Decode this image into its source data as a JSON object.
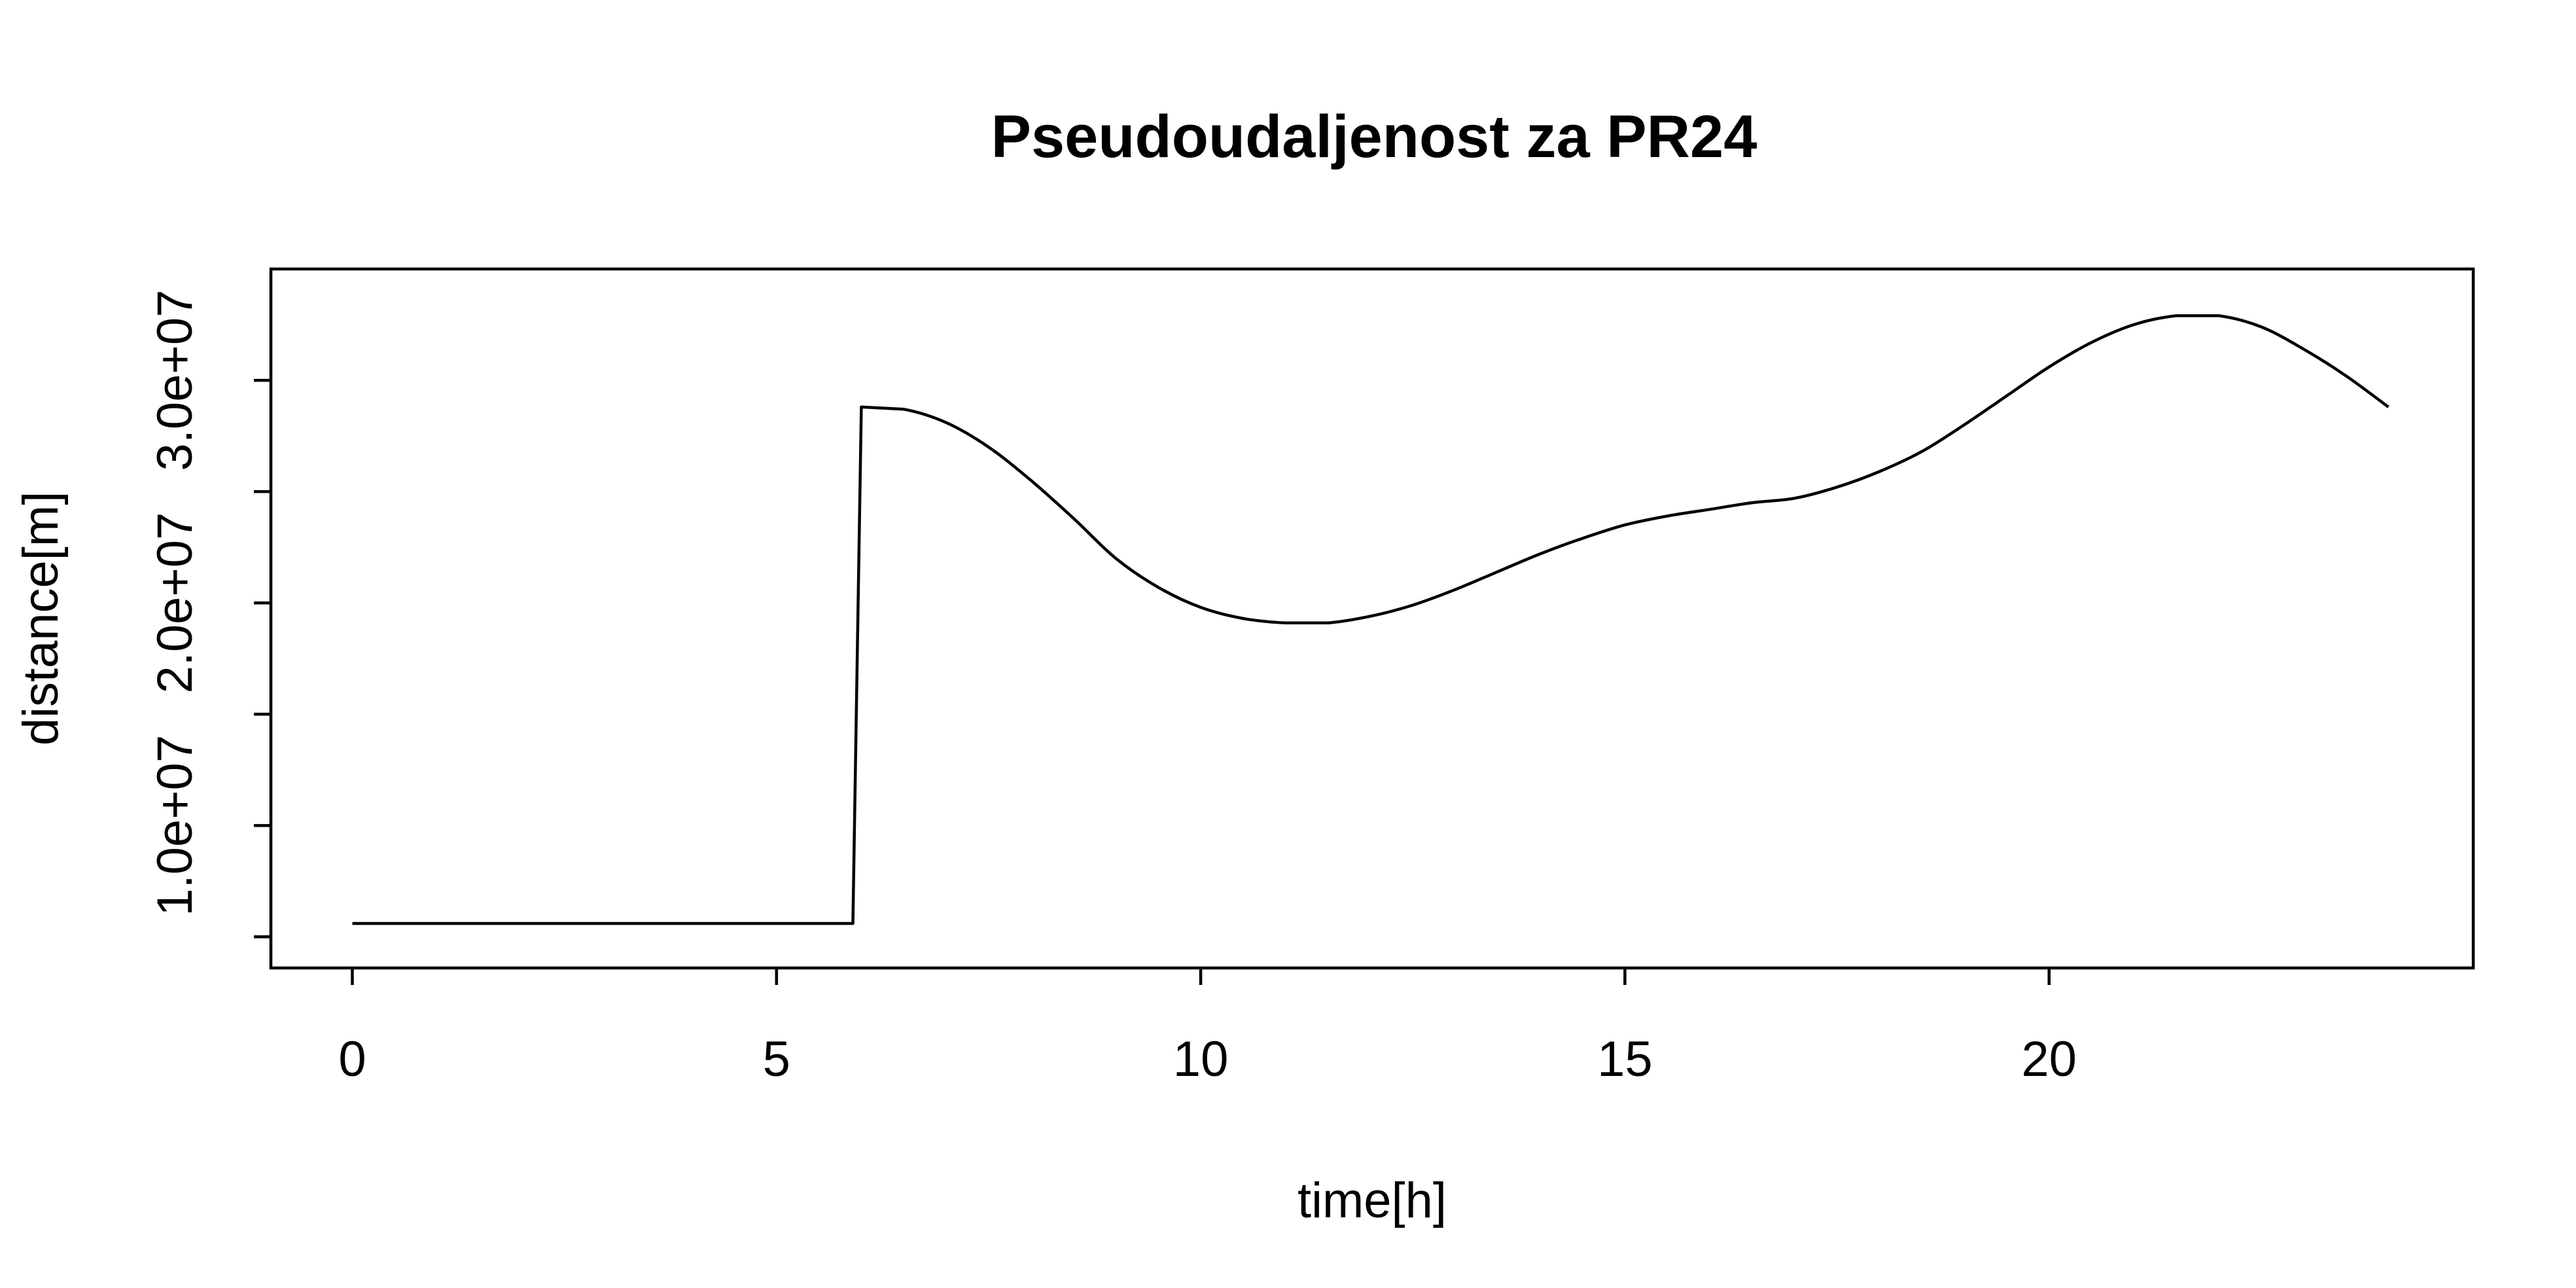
{
  "chart_data": {
    "type": "line",
    "title": "Pseudoudaljenost za PR24",
    "xlabel": "time[h]",
    "ylabel": "distance[m]",
    "xlim": [
      -0.96,
      25.0
    ],
    "ylim": [
      3600000,
      35000000
    ],
    "x_ticks": [
      0,
      5,
      10,
      15,
      20
    ],
    "x_tick_labels": [
      "0",
      "5",
      "10",
      "15",
      "20"
    ],
    "y_ticks": [
      5000000,
      10000000,
      15000000,
      20000000,
      25000000,
      30000000
    ],
    "y_tick_labels": [
      "",
      "1.0e+07",
      "",
      "2.0e+07",
      "",
      "3.0e+07"
    ],
    "grid": false,
    "series": [
      {
        "color": "#000000",
        "x": [
          0,
          1,
          2,
          3,
          4,
          5,
          5.9,
          6.0,
          6.5,
          7.0,
          7.5,
          8.0,
          8.5,
          9.0,
          9.5,
          10.0,
          10.5,
          11.0,
          11.5,
          12.0,
          12.5,
          13.0,
          13.5,
          14.0,
          14.5,
          15.0,
          15.5,
          16.0,
          16.5,
          17.0,
          17.5,
          18.0,
          18.5,
          19.0,
          19.5,
          20.0,
          20.5,
          21.0,
          21.5,
          22.0,
          22.5,
          23.0,
          23.5,
          24.0
        ],
        "y": [
          5600000,
          5600000,
          5600000,
          5600000,
          5600000,
          5600000,
          5600000,
          28800000,
          28700000,
          28100000,
          27000000,
          25500000,
          23800000,
          22000000,
          20700000,
          19800000,
          19300000,
          19100000,
          19100000,
          19400000,
          19900000,
          20600000,
          21400000,
          22200000,
          22900000,
          23500000,
          23900000,
          24200000,
          24500000,
          24700000,
          25200000,
          25900000,
          26800000,
          28000000,
          29300000,
          30600000,
          31700000,
          32500000,
          32900000,
          32900000,
          32400000,
          31400000,
          30200000,
          28800000
        ]
      }
    ]
  }
}
